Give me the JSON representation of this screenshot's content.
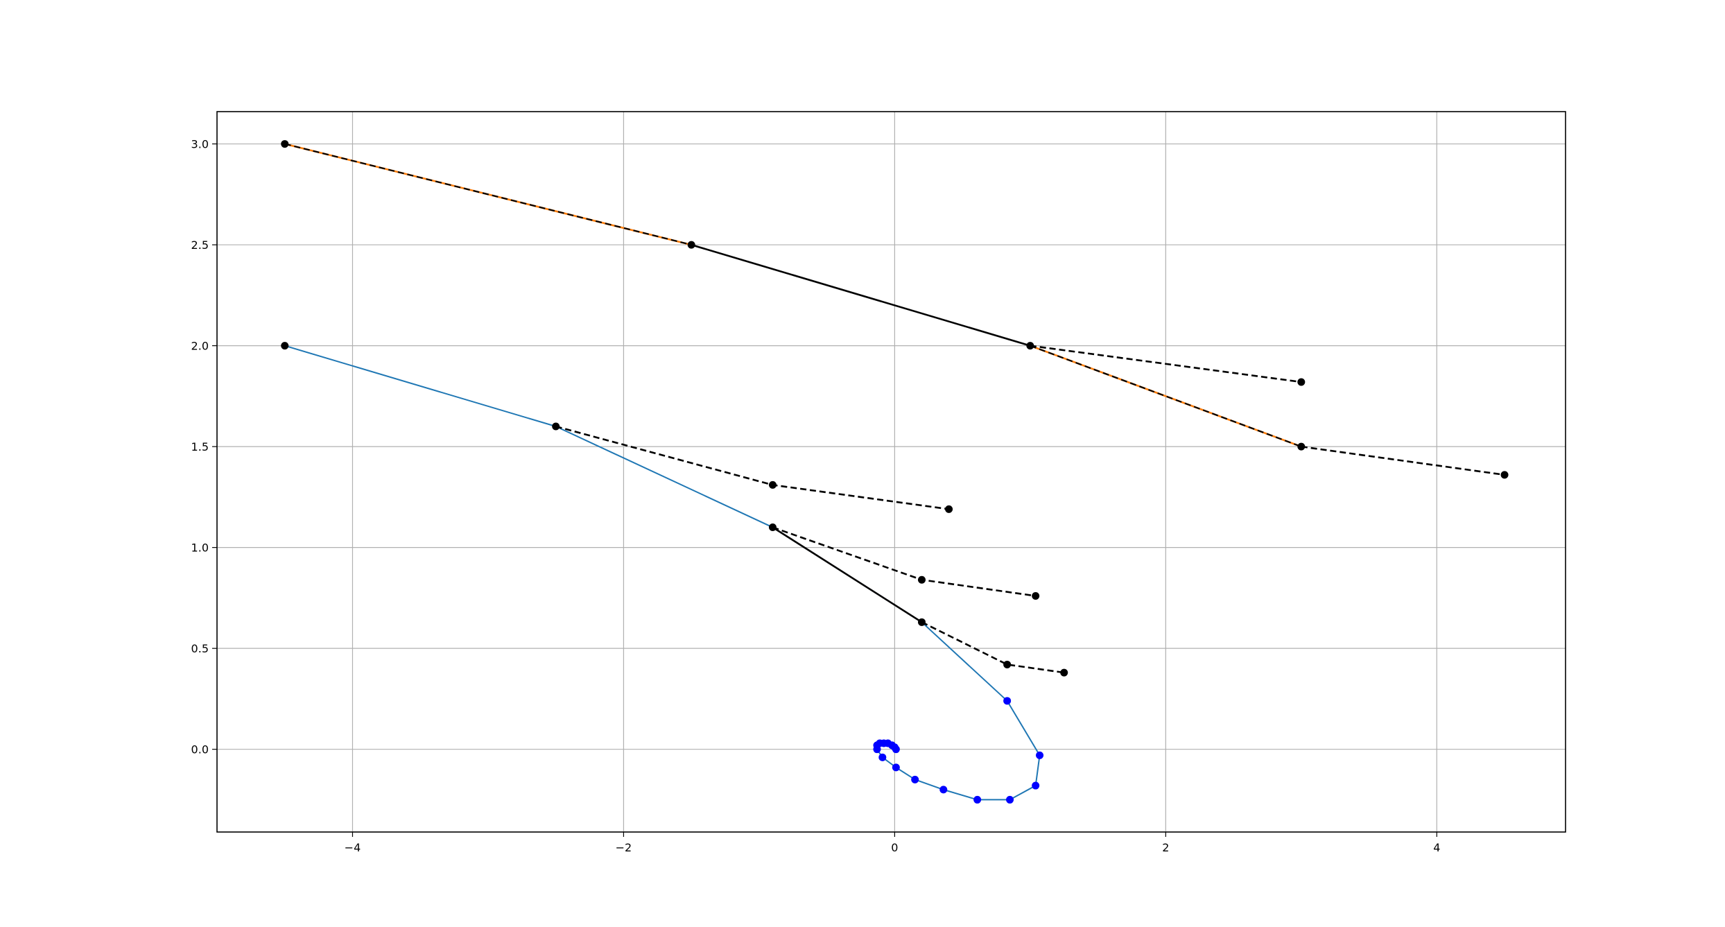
{
  "chart_data": {
    "type": "line",
    "title": "",
    "xlabel": "",
    "ylabel": "",
    "xlim": [
      -5.0,
      4.95
    ],
    "ylim": [
      -0.41,
      3.16
    ],
    "grid": true,
    "legend": "none",
    "x_ticks": [
      {
        "value": -4,
        "label": "−4"
      },
      {
        "value": -2,
        "label": "−2"
      },
      {
        "value": 0,
        "label": "0"
      },
      {
        "value": 2,
        "label": "2"
      },
      {
        "value": 4,
        "label": "4"
      }
    ],
    "y_ticks": [
      {
        "value": 0.0,
        "label": "0.0"
      },
      {
        "value": 0.5,
        "label": "0.5"
      },
      {
        "value": 1.0,
        "label": "1.0"
      },
      {
        "value": 1.5,
        "label": "1.5"
      },
      {
        "value": 2.0,
        "label": "2.0"
      },
      {
        "value": 2.5,
        "label": "2.5"
      },
      {
        "value": 3.0,
        "label": "3.0"
      }
    ],
    "colors": {
      "trajectory": "#1f77b4",
      "points": "#0000ff",
      "upper_path": "#ff7f0e",
      "black": "#000000",
      "grid": "#b0b0b0"
    },
    "series": [
      {
        "style": "solid-blue",
        "x": [
          -4.5,
          -2.5,
          -0.9,
          0.2,
          0.83,
          1.07,
          1.04,
          0.85,
          0.61,
          0.36,
          0.15,
          0.01,
          -0.09,
          -0.13,
          -0.13,
          -0.11,
          -0.08,
          -0.05,
          -0.02,
          0.0,
          0.01
        ],
        "y": [
          2.0,
          1.6,
          1.1,
          0.63,
          0.24,
          -0.03,
          -0.18,
          -0.25,
          -0.25,
          -0.2,
          -0.15,
          -0.09,
          -0.04,
          0.0,
          0.02,
          0.03,
          0.03,
          0.03,
          0.02,
          0.01,
          0.0
        ]
      },
      {
        "style": "dashed-orange",
        "x": [
          -4.5,
          -1.5
        ],
        "y": [
          3.0,
          2.5
        ]
      },
      {
        "style": "solid-black",
        "x": [
          -1.5,
          1.0
        ],
        "y": [
          2.5,
          2.0
        ]
      },
      {
        "style": "dashed-orange",
        "x": [
          1.0,
          3.0
        ],
        "y": [
          2.0,
          1.5
        ]
      },
      {
        "style": "dashed-black",
        "x": [
          1.0,
          3.0
        ],
        "y": [
          2.0,
          1.82
        ]
      },
      {
        "style": "dashed-black",
        "x": [
          3.0,
          4.5
        ],
        "y": [
          1.5,
          1.36
        ]
      },
      {
        "style": "solid-black",
        "x": [
          -0.9,
          0.2
        ],
        "y": [
          1.1,
          0.63
        ]
      },
      {
        "style": "dashed-black",
        "x": [
          -2.5,
          -0.9,
          0.4
        ],
        "y": [
          1.6,
          1.31,
          1.19
        ]
      },
      {
        "style": "dashed-black",
        "x": [
          -0.9,
          0.2,
          1.04
        ],
        "y": [
          1.1,
          0.84,
          0.76
        ]
      },
      {
        "style": "dashed-black",
        "x": [
          0.2,
          0.83,
          1.25
        ],
        "y": [
          0.63,
          0.42,
          0.38
        ]
      }
    ],
    "markers": [
      {
        "style": "black",
        "x": [
          -4.5,
          -1.5,
          1.0,
          3.0,
          3.0,
          4.5,
          -4.5,
          -2.5,
          -0.9,
          0.4,
          -0.9,
          0.2,
          1.04,
          0.2,
          0.83,
          1.25
        ],
        "y": [
          3.0,
          2.5,
          2.0,
          1.82,
          1.5,
          1.36,
          2.0,
          1.6,
          1.31,
          1.19,
          1.1,
          0.84,
          0.76,
          0.63,
          0.42,
          0.38
        ]
      },
      {
        "style": "blue",
        "x": [
          0.83,
          1.07,
          1.04,
          0.85,
          0.61,
          0.36,
          0.15,
          0.01,
          -0.09,
          -0.13,
          -0.13,
          -0.11,
          -0.08,
          -0.05,
          -0.02,
          0.0,
          0.01
        ],
        "y": [
          0.24,
          -0.03,
          -0.18,
          -0.25,
          -0.25,
          -0.2,
          -0.15,
          -0.09,
          -0.04,
          0.0,
          0.02,
          0.03,
          0.03,
          0.03,
          0.02,
          0.01,
          0.0
        ]
      }
    ]
  }
}
